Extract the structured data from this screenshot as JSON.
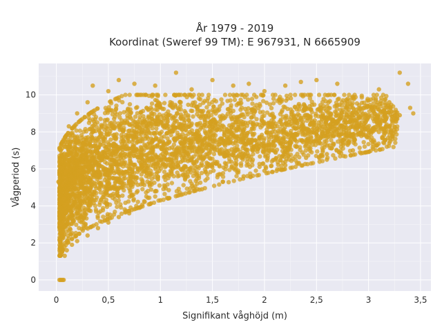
{
  "chart_data": {
    "type": "scatter",
    "title_line1": "År 1979 - 2019",
    "title_line2": "Koordinat (Sweref 99 TM): E 967931, N 6665909",
    "xlabel": "Signifikant våghöjd (m)",
    "ylabel": "Vågperiod (s)",
    "xlim": [
      -0.17,
      3.6
    ],
    "ylim": [
      -0.6,
      11.7
    ],
    "xticks": [
      0,
      0.5,
      1,
      1.5,
      2,
      2.5,
      3,
      3.5
    ],
    "xtick_labels": [
      "0",
      "0,5",
      "1",
      "1,5",
      "2",
      "2,5",
      "3",
      "3,5"
    ],
    "yticks": [
      0,
      2,
      4,
      6,
      8,
      10
    ],
    "ytick_labels": [
      "0",
      "2",
      "4",
      "6",
      "8",
      "10"
    ],
    "grid": true,
    "marker_color": "#D4A020",
    "plot_bg": "#E9E9F2",
    "points": [
      [
        0.03,
        0.0
      ],
      [
        0.05,
        0.0
      ],
      [
        0.07,
        0.0
      ],
      [
        0.04,
        0.0
      ],
      [
        0.06,
        0.0
      ],
      [
        0.02,
        5.3
      ],
      [
        0.04,
        3.0
      ],
      [
        0.05,
        1.4
      ],
      [
        0.08,
        1.3
      ],
      [
        0.1,
        1.6
      ],
      [
        0.15,
        1.9
      ],
      [
        0.2,
        2.1
      ],
      [
        0.3,
        2.4
      ],
      [
        0.4,
        2.8
      ],
      [
        0.5,
        3.1
      ],
      [
        0.6,
        3.4
      ],
      [
        0.7,
        3.6
      ],
      [
        0.8,
        3.9
      ],
      [
        0.9,
        4.1
      ],
      [
        1.0,
        4.3
      ],
      [
        1.2,
        4.6
      ],
      [
        1.4,
        4.9
      ],
      [
        1.6,
        5.3
      ],
      [
        1.8,
        5.6
      ],
      [
        2.0,
        5.9
      ],
      [
        2.2,
        6.2
      ],
      [
        2.4,
        6.6
      ],
      [
        2.6,
        6.8
      ],
      [
        2.8,
        7.3
      ],
      [
        3.0,
        7.7
      ],
      [
        3.2,
        8.3
      ],
      [
        0.08,
        7.2
      ],
      [
        0.12,
        8.3
      ],
      [
        0.2,
        9.0
      ],
      [
        0.3,
        9.6
      ],
      [
        0.35,
        10.5
      ],
      [
        0.5,
        10.2
      ],
      [
        0.6,
        10.8
      ],
      [
        0.75,
        10.6
      ],
      [
        0.95,
        10.5
      ],
      [
        1.15,
        11.2
      ],
      [
        1.3,
        10.3
      ],
      [
        1.5,
        10.8
      ],
      [
        1.7,
        10.5
      ],
      [
        1.85,
        10.6
      ],
      [
        2.0,
        10.2
      ],
      [
        2.2,
        10.5
      ],
      [
        2.35,
        10.7
      ],
      [
        2.5,
        10.8
      ],
      [
        2.7,
        10.6
      ],
      [
        2.85,
        9.9
      ],
      [
        3.0,
        9.7
      ],
      [
        3.1,
        10.3
      ],
      [
        3.2,
        9.6
      ],
      [
        3.3,
        11.2
      ],
      [
        3.38,
        10.6
      ],
      [
        3.43,
        9.0
      ],
      [
        3.4,
        9.3
      ],
      [
        3.25,
        8.1
      ],
      [
        3.2,
        7.4
      ],
      [
        2.9,
        7.9
      ],
      [
        2.6,
        6.5
      ],
      [
        3.0,
        8.9
      ],
      [
        3.15,
        8.6
      ],
      [
        0.1,
        5.9
      ],
      [
        0.07,
        4.4
      ],
      [
        0.06,
        2.6
      ],
      [
        2.85,
        7.0
      ],
      [
        3.1,
        8.0
      ],
      [
        3.3,
        8.9
      ]
    ]
  }
}
